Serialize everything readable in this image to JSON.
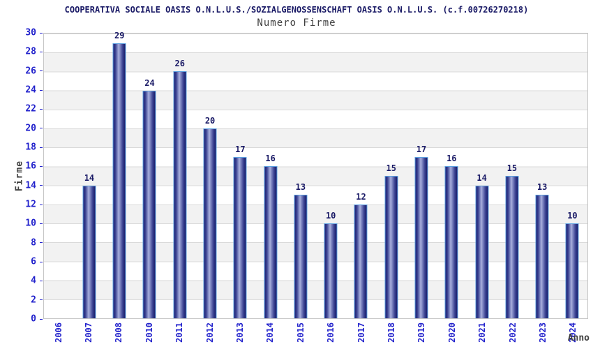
{
  "header": {
    "title": "COOPERATIVA SOCIALE OASIS O.N.L.U.S./SOZIALGENOSSENSCHAFT OASIS O.N.L.U.S. (c.f.00726270218)",
    "subtitle": "Numero Firme"
  },
  "chart_data": {
    "type": "bar",
    "title": "COOPERATIVA SOCIALE OASIS O.N.L.U.S./SOZIALGENOSSENSCHAFT OASIS O.N.L.U.S. (c.f.00726270218)",
    "subtitle": "Numero Firme",
    "xlabel": "Anno",
    "ylabel": "Firme",
    "categories": [
      "2006",
      "2007",
      "2008",
      "2010",
      "2011",
      "2012",
      "2013",
      "2014",
      "2015",
      "2016",
      "2017",
      "2018",
      "2019",
      "2020",
      "2021",
      "2022",
      "2023",
      "2024"
    ],
    "values": [
      0,
      14,
      29,
      24,
      26,
      20,
      17,
      16,
      13,
      10,
      12,
      15,
      17,
      16,
      14,
      15,
      13,
      10
    ],
    "ylim": [
      0,
      30
    ],
    "ytick_step": 2,
    "grid": "horizontal-bands",
    "legend_position": "none",
    "colors": {
      "bar_dark": "#1d2175",
      "bar_light": "#aab0dc",
      "bar_outline": "#5ca0e0",
      "tick_label_blue": "#2222cc",
      "value_label": "#1a1a66",
      "title": "#1a1a66",
      "axis_title_text": "#404040",
      "band_alt": "#f2f2f2",
      "gridline": "#d9d9d9",
      "plot_border": "#c6c6c6"
    }
  }
}
